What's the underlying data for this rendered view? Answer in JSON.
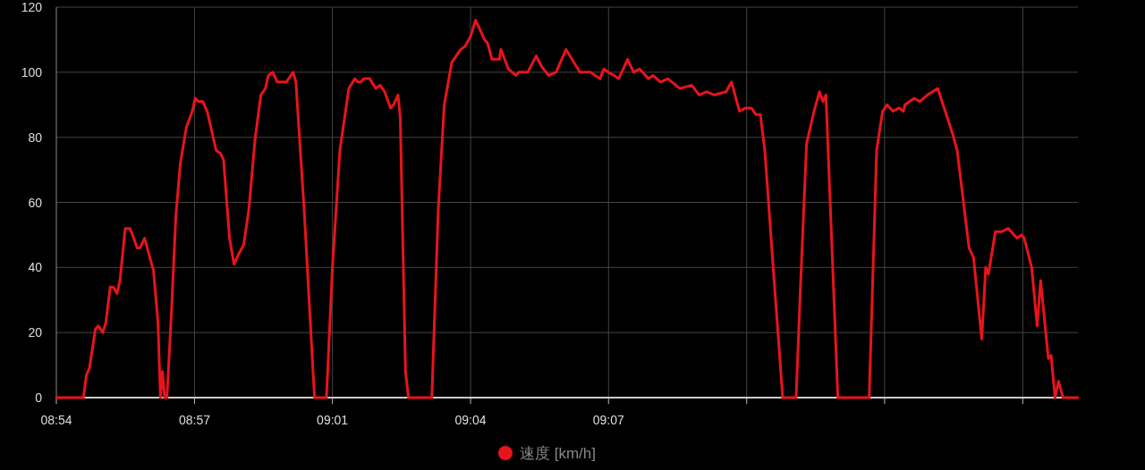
{
  "chart_data": {
    "type": "line",
    "x": [
      8.9,
      8.9109,
      8.9121,
      8.9133,
      8.9157,
      8.9169,
      8.9187,
      8.9199,
      8.9217,
      8.9229,
      8.9244,
      8.9256,
      8.9277,
      8.9295,
      8.9307,
      8.9325,
      8.9337,
      8.9355,
      8.9391,
      8.9409,
      8.9419,
      8.9427,
      8.9436,
      8.9445,
      8.9463,
      8.9481,
      8.9499,
      8.9523,
      8.9547,
      8.9559,
      8.9571,
      8.9589,
      8.9607,
      8.9625,
      8.9643,
      8.9661,
      8.9673,
      8.9697,
      8.9715,
      8.9733,
      8.9754,
      8.9775,
      8.9799,
      8.9823,
      8.9841,
      8.9853,
      8.9871,
      8.9889,
      8.9925,
      8.9953,
      8.9964,
      8.9997,
      9.0033,
      9.0039,
      9.0087,
      9.0111,
      9.0141,
      9.0177,
      9.0201,
      9.0213,
      9.0225,
      9.0237,
      9.0261,
      9.0285,
      9.0303,
      9.0321,
      9.0345,
      9.0357,
      9.0375,
      9.0384,
      9.0405,
      9.0417,
      9.0511,
      9.0537,
      9.0561,
      9.0591,
      9.0627,
      9.0645,
      9.0667,
      9.0687,
      9.0705,
      9.0723,
      9.0735,
      9.0753,
      9.0783,
      9.0789,
      9.0819,
      9.0849,
      9.0861,
      9.0897,
      9.0931,
      9.0951,
      9.0981,
      9.1011,
      9.1051,
      9.1083,
      9.1107,
      9.1149,
      9.1188,
      9.1203,
      9.1221,
      9.1245,
      9.1263,
      9.1299,
      9.1323,
      9.1347,
      9.1383,
      9.1401,
      9.1431,
      9.1461,
      9.1509,
      9.1557,
      9.1587,
      9.1617,
      9.1647,
      9.1695,
      9.1717,
      9.1749,
      9.1773,
      9.1797,
      9.1815,
      9.1833,
      9.1851,
      9.1881,
      9.1923,
      9.1977,
      9.1995,
      9.2019,
      9.2049,
      9.2071,
      9.2085,
      9.2097,
      9.2145,
      9.2271,
      9.2301,
      9.2325,
      9.2343,
      9.2367,
      9.2391,
      9.2409,
      9.2415,
      9.2452,
      9.2475,
      9.2505,
      9.2547,
      9.2607,
      9.2625,
      9.2673,
      9.2691,
      9.2724,
      9.274,
      9.2751,
      9.2779,
      9.2805,
      9.283,
      9.2866,
      9.2884,
      9.2895,
      9.2925,
      9.2947,
      9.2961,
      9.2992,
      9.3003,
      9.3019,
      9.3033,
      9.3051,
      9.3111
    ],
    "series": [
      {
        "name": "速度 [km/h]",
        "color": "#e8141b",
        "values": [
          0,
          0,
          7,
          9,
          21,
          22,
          20,
          23,
          34,
          34,
          32,
          36,
          52,
          52,
          50,
          46,
          46,
          49,
          39,
          23,
          0,
          8,
          0,
          0,
          26,
          56,
          72,
          83,
          88,
          92,
          91,
          91,
          88,
          82,
          76,
          75,
          73,
          49,
          41,
          44,
          47,
          58,
          79,
          93,
          95,
          99,
          100,
          97,
          97,
          100,
          97,
          58,
          8,
          0,
          0,
          40,
          76,
          95,
          98,
          97,
          97,
          98,
          98,
          95,
          96,
          94,
          89,
          90,
          93,
          86,
          8,
          0,
          0,
          58,
          90,
          103,
          107,
          108,
          111,
          116,
          113,
          110,
          109,
          104,
          104,
          107,
          101,
          99,
          100,
          100,
          105,
          102,
          99,
          100,
          107,
          103,
          100,
          100,
          98,
          101,
          100,
          99,
          98,
          104,
          100,
          101,
          98,
          99,
          97,
          98,
          95,
          96,
          93,
          94,
          93,
          94,
          97,
          88,
          89,
          89,
          87,
          87,
          76,
          44,
          0,
          0,
          35,
          78,
          88,
          94,
          91,
          93,
          0,
          0,
          76,
          88,
          90,
          88,
          89,
          88,
          90,
          92,
          91,
          93,
          95,
          81,
          76,
          46,
          43,
          18,
          40,
          38,
          51,
          51,
          52,
          49,
          50,
          49,
          40,
          22,
          36,
          12,
          13,
          0,
          5,
          0,
          0
        ]
      }
    ],
    "xlim": [
      8.9,
      9.3111
    ],
    "xticks": [
      {
        "value": 8.9,
        "label": "08:54"
      },
      {
        "value": 8.9556,
        "label": "08:57"
      },
      {
        "value": 9.0111,
        "label": "09:01"
      },
      {
        "value": 9.0667,
        "label": "09:04"
      },
      {
        "value": 9.1222,
        "label": "09:07"
      },
      {
        "value": 9.1778,
        "label": null
      },
      {
        "value": 9.2333,
        "label": null
      },
      {
        "value": 9.2889,
        "label": null
      }
    ],
    "ylim": [
      0,
      120
    ],
    "yticks": [
      0,
      20,
      40,
      60,
      80,
      100,
      120
    ],
    "grid": true,
    "legend": "bottom",
    "marker": "none",
    "line_style": "solid"
  }
}
